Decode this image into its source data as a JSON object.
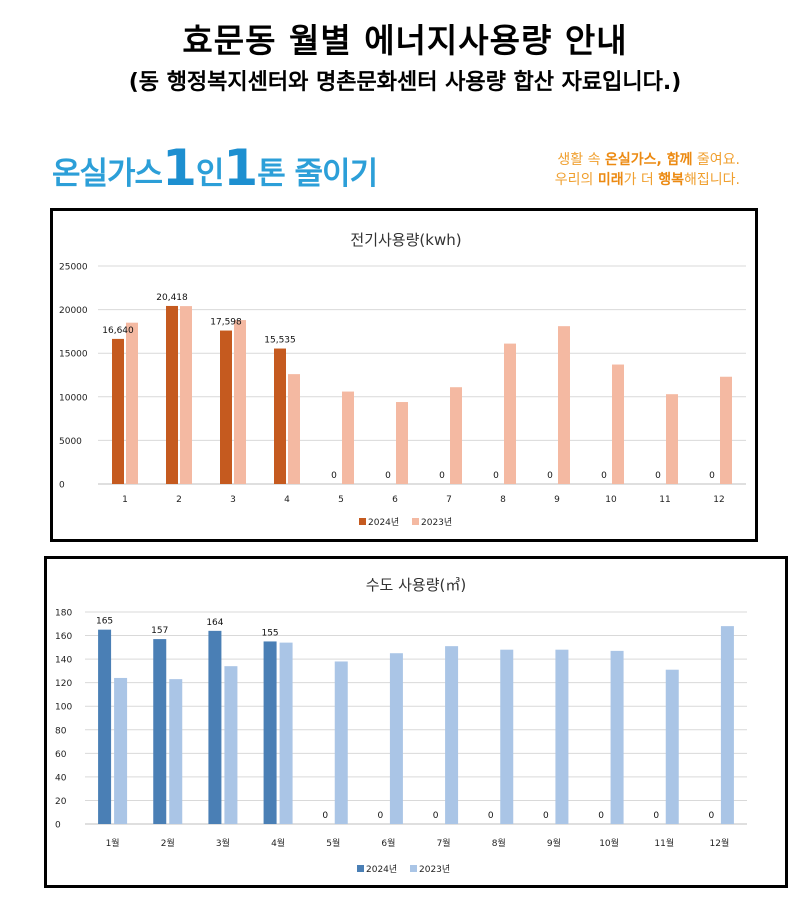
{
  "header": {
    "title": "효문동 월별 에너지사용량 안내",
    "subtitle": "(동 행정복지센터와 명촌문화센터 사용량 합산 자료입니다.)"
  },
  "banner": {
    "logo_parts": [
      "온실가스",
      "1",
      "인",
      "1",
      "톤 줄이기"
    ],
    "slogan_line1": [
      "생활 속 ",
      "온실가스",
      ", ",
      "함께",
      " 줄여요."
    ],
    "slogan_line2": [
      "우리의 ",
      "미래",
      "가 더 ",
      "행복",
      "해집니다."
    ]
  },
  "colors": {
    "elec_2024": "#c55a1f",
    "elec_2023": "#f4b9a2",
    "water_2024": "#4a7fb5",
    "water_2023": "#aac5e6",
    "logo_blue": "#2c9fd8",
    "slogan_orange": "#f0a030"
  },
  "chart_data": [
    {
      "type": "bar",
      "title": "전기사용량(kwh)",
      "categories": [
        "1",
        "2",
        "3",
        "4",
        "5",
        "6",
        "7",
        "8",
        "9",
        "10",
        "11",
        "12"
      ],
      "series": [
        {
          "name": "2024년",
          "values": [
            16640,
            20418,
            17598,
            15535,
            0,
            0,
            0,
            0,
            0,
            0,
            0,
            0
          ],
          "data_labels": [
            "16,640",
            "20,418",
            "17,598",
            "15,535",
            "0",
            "0",
            "0",
            "0",
            "0",
            "0",
            "0",
            "0"
          ]
        },
        {
          "name": "2023년",
          "values": [
            18500,
            20400,
            18800,
            12600,
            10600,
            9400,
            11100,
            16100,
            18100,
            13700,
            10300,
            12300
          ]
        }
      ],
      "ylim": [
        0,
        25000
      ],
      "yticks": [
        "0",
        "5000",
        "10000",
        "15000",
        "20000",
        "25000"
      ],
      "grid": true,
      "legend": "bottom"
    },
    {
      "type": "bar",
      "title": "수도 사용량(㎥)",
      "categories": [
        "1월",
        "2월",
        "3월",
        "4월",
        "5월",
        "6월",
        "7월",
        "8월",
        "9월",
        "10월",
        "11월",
        "12월"
      ],
      "series": [
        {
          "name": "2024년",
          "values": [
            165,
            157,
            164,
            155,
            0,
            0,
            0,
            0,
            0,
            0,
            0,
            0
          ],
          "data_labels": [
            "165",
            "157",
            "164",
            "155",
            "0",
            "0",
            "0",
            "0",
            "0",
            "0",
            "0",
            "0"
          ]
        },
        {
          "name": "2023년",
          "values": [
            124,
            123,
            134,
            154,
            138,
            145,
            151,
            148,
            148,
            147,
            131,
            168
          ]
        }
      ],
      "ylim": [
        0,
        180
      ],
      "yticks": [
        "0",
        "20",
        "40",
        "60",
        "80",
        "100",
        "120",
        "140",
        "160",
        "180"
      ],
      "grid": true,
      "legend": "bottom"
    }
  ]
}
